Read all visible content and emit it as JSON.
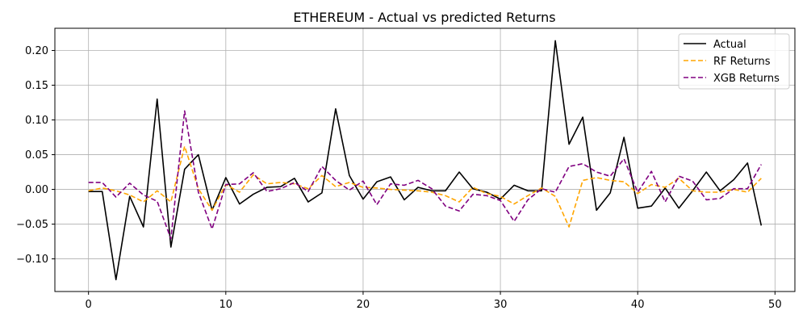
{
  "chart_data": {
    "type": "line",
    "title": "ETHEREUM - Actual vs predicted Returns",
    "xlabel": "",
    "ylabel": "",
    "xlim": [
      -2.45,
      51.45
    ],
    "ylim": [
      -0.147,
      0.232
    ],
    "xticks": [
      0,
      10,
      20,
      30,
      40,
      50
    ],
    "yticks": [
      -0.1,
      -0.05,
      0.0,
      0.05,
      0.1,
      0.15,
      0.2
    ],
    "ytick_labels": [
      "−0.10",
      "−0.05",
      "0.00",
      "0.05",
      "0.10",
      "0.15",
      "0.20"
    ],
    "grid": true,
    "legend_position": "top-right",
    "x": [
      0,
      1,
      2,
      3,
      4,
      5,
      6,
      7,
      8,
      9,
      10,
      11,
      12,
      13,
      14,
      15,
      16,
      17,
      18,
      19,
      20,
      21,
      22,
      23,
      24,
      25,
      26,
      27,
      28,
      29,
      30,
      31,
      32,
      33,
      34,
      35,
      36,
      37,
      38,
      39,
      40,
      41,
      42,
      43,
      44,
      45,
      46,
      47,
      48,
      49
    ],
    "series": [
      {
        "name": "Actual",
        "color": "#000000",
        "dash": "solid",
        "values": [
          -0.003,
          -0.003,
          -0.13,
          -0.01,
          -0.054,
          0.13,
          -0.083,
          0.029,
          0.05,
          -0.03,
          0.017,
          -0.021,
          -0.007,
          0.003,
          0.004,
          0.016,
          -0.018,
          -0.005,
          0.116,
          0.02,
          -0.014,
          0.011,
          0.018,
          -0.015,
          0.003,
          -0.002,
          -0.002,
          0.025,
          0.001,
          -0.004,
          -0.014,
          0.006,
          -0.002,
          -0.002,
          0.214,
          0.065,
          0.104,
          -0.03,
          -0.005,
          0.075,
          -0.027,
          -0.024,
          0.002,
          -0.027,
          -0.002,
          0.025,
          -0.002,
          0.014,
          0.038,
          -0.052
        ]
      },
      {
        "name": "RF Returns",
        "color": "#ffa500",
        "dash": "dashed",
        "values": [
          -0.002,
          0.002,
          -0.002,
          -0.008,
          -0.018,
          -0.002,
          -0.018,
          0.062,
          0.001,
          -0.03,
          0.007,
          -0.004,
          0.021,
          0.008,
          0.01,
          0.008,
          0.001,
          0.02,
          0.004,
          0.01,
          0.003,
          0.002,
          0.0,
          -0.001,
          -0.002,
          -0.004,
          -0.009,
          -0.018,
          0.003,
          -0.006,
          -0.01,
          -0.021,
          -0.009,
          0.002,
          -0.01,
          -0.054,
          0.013,
          0.017,
          0.013,
          0.011,
          -0.006,
          0.007,
          0.003,
          0.016,
          -0.002,
          -0.004,
          -0.004,
          0.0,
          -0.004,
          0.016
        ]
      },
      {
        "name": "XGB Returns",
        "color": "#800080",
        "dash": "dashed",
        "values": [
          0.01,
          0.01,
          -0.011,
          0.009,
          -0.008,
          -0.017,
          -0.071,
          0.113,
          -0.004,
          -0.057,
          0.007,
          0.008,
          0.024,
          -0.003,
          0.001,
          0.01,
          -0.003,
          0.033,
          0.013,
          -0.001,
          0.012,
          -0.022,
          0.008,
          0.006,
          0.013,
          0.001,
          -0.024,
          -0.031,
          -0.007,
          -0.009,
          -0.016,
          -0.046,
          -0.015,
          0.001,
          -0.004,
          0.033,
          0.037,
          0.025,
          0.019,
          0.044,
          -0.004,
          0.026,
          -0.018,
          0.019,
          0.012,
          -0.015,
          -0.013,
          0.001,
          0.001,
          0.036
        ]
      }
    ]
  }
}
